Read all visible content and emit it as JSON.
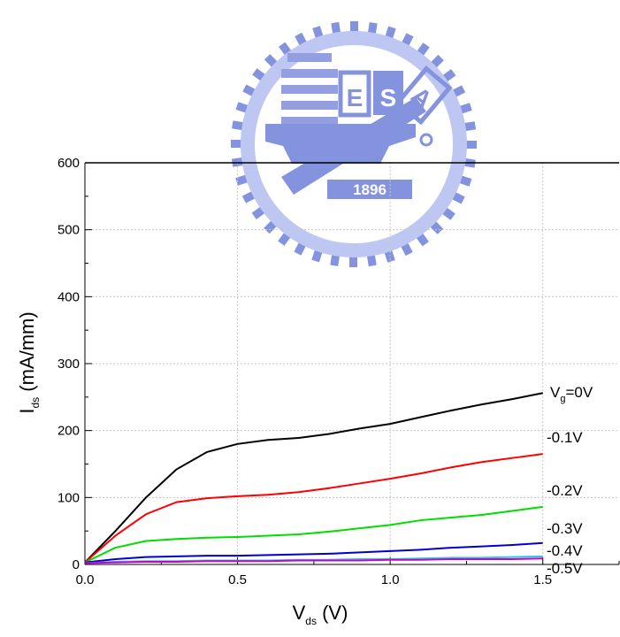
{
  "watermark": {
    "text": "1896",
    "initials": [
      "E",
      "S",
      "A"
    ]
  },
  "chart_data": {
    "type": "line",
    "xlabel": {
      "main": "V",
      "sub": "ds",
      "rest": " (V)"
    },
    "ylabel": {
      "main": "I",
      "sub": "ds",
      "rest": " (mA/mm)"
    },
    "xlim": [
      0,
      1.75
    ],
    "ylim": [
      0,
      600
    ],
    "xticks": [
      0.0,
      0.5,
      1.0,
      1.5
    ],
    "xtick_labels": [
      "0.0",
      "0.5",
      "1.0",
      "1.5"
    ],
    "yticks": [
      0,
      100,
      200,
      300,
      400,
      500,
      600
    ],
    "ytick_labels": [
      "0",
      "100",
      "200",
      "300",
      "400",
      "500",
      "600"
    ],
    "grid": true,
    "x": [
      0.0,
      0.1,
      0.2,
      0.3,
      0.4,
      0.5,
      0.6,
      0.7,
      0.8,
      0.9,
      1.0,
      1.1,
      1.2,
      1.3,
      1.4,
      1.5
    ],
    "series": [
      {
        "name": "V_g=0V",
        "label_main": "V",
        "label_sub": "g",
        "label_rest": "=0V",
        "color": "#000000",
        "values": [
          3,
          50,
          100,
          142,
          168,
          180,
          186,
          189,
          195,
          203,
          210,
          220,
          230,
          239,
          247,
          256
        ]
      },
      {
        "name": "-0.1V",
        "color": "#ff0000",
        "values": [
          3,
          43,
          75,
          93,
          99,
          102,
          104,
          108,
          114,
          121,
          128,
          136,
          145,
          153,
          159,
          165
        ]
      },
      {
        "name": "-0.2V",
        "color": "#00dd00",
        "values": [
          3,
          25,
          35,
          38,
          40,
          41,
          43,
          45,
          49,
          54,
          59,
          66,
          70,
          74,
          80,
          86
        ]
      },
      {
        "name": "-0.3V",
        "color": "#0000cc",
        "values": [
          3,
          8,
          11,
          12,
          13,
          13,
          14,
          15,
          16,
          18,
          20,
          22,
          25,
          27,
          29,
          32
        ]
      },
      {
        "name": "-0.4V",
        "color": "#22ccdd",
        "values": [
          2,
          4,
          5,
          5,
          6,
          6,
          6,
          7,
          7,
          8,
          8,
          9,
          10,
          10,
          11,
          12
        ]
      },
      {
        "name": "-0.5V",
        "color": "#cc00cc",
        "values": [
          2,
          3,
          4,
          4,
          5,
          5,
          5,
          6,
          6,
          6,
          7,
          7,
          8,
          8,
          8,
          9
        ]
      }
    ]
  }
}
